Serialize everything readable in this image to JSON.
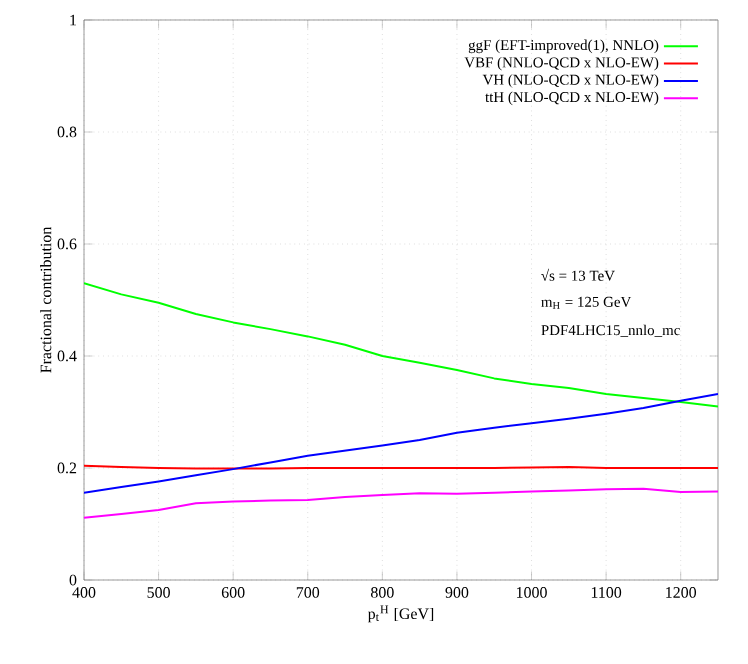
{
  "chart_data": {
    "type": "line",
    "xlabel": "p$_{t}$$^{H}$ [GeV]",
    "ylabel": "Fractional contribution",
    "x": [
      400,
      450,
      500,
      550,
      600,
      650,
      700,
      750,
      800,
      850,
      900,
      950,
      1000,
      1050,
      1100,
      1150,
      1200,
      1250
    ],
    "series": [
      {
        "name": "ggF (EFT-improved(1), NNLO)",
        "color": "#00ff00",
        "values": [
          0.53,
          0.51,
          0.495,
          0.475,
          0.46,
          0.448,
          0.435,
          0.42,
          0.4,
          0.388,
          0.375,
          0.36,
          0.35,
          0.343,
          0.332,
          0.325,
          0.318,
          0.31
        ]
      },
      {
        "name": "VBF (NNLO-QCD x NLO-EW)",
        "color": "#ff0000",
        "values": [
          0.204,
          0.202,
          0.2,
          0.199,
          0.199,
          0.199,
          0.2,
          0.2,
          0.2,
          0.2,
          0.2,
          0.2,
          0.201,
          0.202,
          0.2,
          0.2,
          0.2,
          0.2
        ]
      },
      {
        "name": "VH (NLO-QCD x NLO-EW)",
        "color": "#0000ff",
        "values": [
          0.156,
          0.166,
          0.176,
          0.187,
          0.198,
          0.21,
          0.222,
          0.231,
          0.24,
          0.25,
          0.263,
          0.272,
          0.28,
          0.288,
          0.297,
          0.307,
          0.32,
          0.332
        ]
      },
      {
        "name": "ttH (NLO-QCD x NLO-EW)",
        "color": "#ff00ff",
        "values": [
          0.111,
          0.118,
          0.125,
          0.137,
          0.14,
          0.142,
          0.143,
          0.148,
          0.152,
          0.155,
          0.154,
          0.156,
          0.158,
          0.16,
          0.162,
          0.163,
          0.157,
          0.158
        ]
      }
    ],
    "annotations": [
      "√s = 13 TeV",
      "m$_{H}$ = 125 GeV",
      "PDF4LHC15_nnlo_mc"
    ],
    "xlim": [
      400,
      1250
    ],
    "ylim": [
      0,
      1
    ],
    "xticks": [
      400,
      500,
      600,
      700,
      800,
      900,
      1000,
      1100,
      1200
    ],
    "yticks": [
      0,
      0.2,
      0.4,
      0.6,
      0.8,
      1
    ],
    "grid": true,
    "legend": "top right",
    "marker": "none",
    "line_style": "solid"
  }
}
